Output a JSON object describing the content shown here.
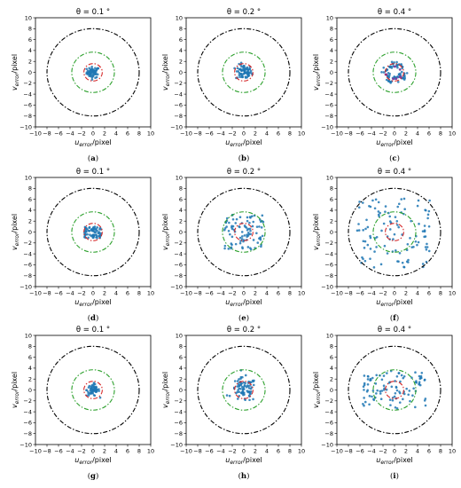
{
  "figure": {
    "rows": 3,
    "cols": 3
  },
  "chart_data": [
    {
      "panel": "(a)",
      "type": "scatter",
      "title": "θ = 0.1 °",
      "xlabel": "u_error/pixel",
      "ylabel": "v_error/pixel",
      "xlim": [
        -10,
        10
      ],
      "ylim": [
        -10,
        10
      ],
      "ticks": [
        -10,
        -8,
        -6,
        -4,
        -2,
        0,
        2,
        4,
        6,
        8,
        10
      ],
      "circles": [
        {
          "radius": 1.6,
          "color": "#d62728",
          "style": "dash-dot"
        },
        {
          "radius": 3.7,
          "color": "#2ca02c",
          "style": "dash-dot"
        },
        {
          "radius": 8.0,
          "color": "#000000",
          "style": "dash-dot"
        }
      ],
      "points": {
        "count": 60,
        "spread_x": 0.55,
        "spread_y": 0.5,
        "shape": "gauss",
        "color": "#1f77b4"
      }
    },
    {
      "panel": "(b)",
      "type": "scatter",
      "title": "θ = 0.2 °",
      "xlabel": "u_error/pixel",
      "ylabel": "v_error/pixel",
      "xlim": [
        -10,
        10
      ],
      "ylim": [
        -10,
        10
      ],
      "ticks": [
        -10,
        -8,
        -6,
        -4,
        -2,
        0,
        2,
        4,
        6,
        8,
        10
      ],
      "circles": [
        {
          "radius": 1.6,
          "color": "#d62728",
          "style": "dash-dot"
        },
        {
          "radius": 3.7,
          "color": "#2ca02c",
          "style": "dash-dot"
        },
        {
          "radius": 8.0,
          "color": "#000000",
          "style": "dash-dot"
        }
      ],
      "points": {
        "count": 70,
        "spread_x": 0.7,
        "spread_y": 0.7,
        "shape": "gauss",
        "color": "#1f77b4"
      }
    },
    {
      "panel": "(c)",
      "type": "scatter",
      "title": "θ = 0.4 °",
      "xlabel": "u_error/pixel",
      "ylabel": "v_error/pixel",
      "xlim": [
        -10,
        10
      ],
      "ylim": [
        -10,
        10
      ],
      "ticks": [
        -10,
        -8,
        -6,
        -4,
        -2,
        0,
        2,
        4,
        6,
        8,
        10
      ],
      "circles": [
        {
          "radius": 1.6,
          "color": "#d62728",
          "style": "dash-dot"
        },
        {
          "radius": 3.7,
          "color": "#2ca02c",
          "style": "dash-dot"
        },
        {
          "radius": 8.0,
          "color": "#000000",
          "style": "dash-dot"
        }
      ],
      "points": {
        "count": 70,
        "spread_x": 1.4,
        "spread_y": 1.3,
        "shape": "ring",
        "color": "#1f77b4",
        "purple_count": 8
      }
    },
    {
      "panel": "(d)",
      "type": "scatter",
      "title": "θ = 0.1 °",
      "xlabel": "u_error/pixel",
      "ylabel": "v_error/pixel",
      "xlim": [
        -10,
        10
      ],
      "ylim": [
        -10,
        10
      ],
      "ticks": [
        -10,
        -8,
        -6,
        -4,
        -2,
        0,
        2,
        4,
        6,
        8,
        10
      ],
      "circles": [
        {
          "radius": 1.6,
          "color": "#d62728",
          "style": "dash-dot"
        },
        {
          "radius": 3.7,
          "color": "#2ca02c",
          "style": "dash-dot"
        },
        {
          "radius": 8.0,
          "color": "#000000",
          "style": "dash-dot"
        }
      ],
      "points": {
        "count": 70,
        "spread_x": 1.5,
        "spread_y": 1.1,
        "shape": "uniform",
        "color": "#1f77b4"
      }
    },
    {
      "panel": "(e)",
      "type": "scatter",
      "title": "θ = 0.2 °",
      "xlabel": "u_error/pixel",
      "ylabel": "v_error/pixel",
      "xlim": [
        -10,
        10
      ],
      "ylim": [
        -10,
        10
      ],
      "ticks": [
        -10,
        -8,
        -6,
        -4,
        -2,
        0,
        2,
        4,
        6,
        8,
        10
      ],
      "circles": [
        {
          "radius": 1.6,
          "color": "#d62728",
          "style": "dash-dot"
        },
        {
          "radius": 3.7,
          "color": "#2ca02c",
          "style": "dash-dot"
        },
        {
          "radius": 8.0,
          "color": "#000000",
          "style": "dash-dot"
        }
      ],
      "points": {
        "count": 90,
        "spread_x": 3.4,
        "spread_y": 3.3,
        "shape": "uniform",
        "color": "#1f77b4"
      }
    },
    {
      "panel": "(f)",
      "type": "scatter",
      "title": "θ = 0.4 °",
      "xlabel": "u_error/pixel",
      "ylabel": "v_error/pixel",
      "xlim": [
        -10,
        10
      ],
      "ylim": [
        -10,
        10
      ],
      "ticks": [
        -10,
        -8,
        -6,
        -4,
        -2,
        0,
        2,
        4,
        6,
        8,
        10
      ],
      "circles": [
        {
          "radius": 1.6,
          "color": "#d62728",
          "style": "dash-dot"
        },
        {
          "radius": 3.7,
          "color": "#2ca02c",
          "style": "dash-dot"
        },
        {
          "radius": 8.0,
          "color": "#000000",
          "style": "dash-dot"
        }
      ],
      "points": {
        "count": 110,
        "spread_x": 6.5,
        "spread_y": 6.5,
        "shape": "uniform",
        "color": "#1f77b4"
      }
    },
    {
      "panel": "(g)",
      "type": "scatter",
      "title": "θ = 0.1 °",
      "xlabel": "u_error/pixel",
      "ylabel": "v_error/pixel",
      "xlim": [
        -10,
        10
      ],
      "ylim": [
        -10,
        10
      ],
      "ticks": [
        -10,
        -8,
        -6,
        -4,
        -2,
        0,
        2,
        4,
        6,
        8,
        10
      ],
      "circles": [
        {
          "radius": 1.6,
          "color": "#d62728",
          "style": "dash-dot"
        },
        {
          "radius": 3.7,
          "color": "#2ca02c",
          "style": "dash-dot"
        },
        {
          "radius": 8.0,
          "color": "#000000",
          "style": "dash-dot"
        }
      ],
      "points": {
        "count": 60,
        "spread_x": 0.55,
        "spread_y": 0.55,
        "shape": "gauss",
        "color": "#1f77b4"
      }
    },
    {
      "panel": "(h)",
      "type": "scatter",
      "title": "θ = 0.2 °",
      "xlabel": "u_error/pixel",
      "ylabel": "v_error/pixel",
      "xlim": [
        -10,
        10
      ],
      "ylim": [
        -10,
        10
      ],
      "ticks": [
        -10,
        -8,
        -6,
        -4,
        -2,
        0,
        2,
        4,
        6,
        8,
        10
      ],
      "circles": [
        {
          "radius": 1.6,
          "color": "#d62728",
          "style": "dash-dot"
        },
        {
          "radius": 3.7,
          "color": "#2ca02c",
          "style": "dash-dot"
        },
        {
          "radius": 8.0,
          "color": "#000000",
          "style": "dash-dot"
        }
      ],
      "points": {
        "count": 80,
        "spread_x": 1.1,
        "spread_y": 1.1,
        "shape": "gauss",
        "color": "#1f77b4"
      }
    },
    {
      "panel": "(i)",
      "type": "scatter",
      "title": "θ = 0.4 °",
      "xlabel": "u_error/pixel",
      "ylabel": "v_error/pixel",
      "xlim": [
        -10,
        10
      ],
      "ylim": [
        -10,
        10
      ],
      "ticks": [
        -10,
        -8,
        -6,
        -4,
        -2,
        0,
        2,
        4,
        6,
        8,
        10
      ],
      "circles": [
        {
          "radius": 1.6,
          "color": "#d62728",
          "style": "dash-dot"
        },
        {
          "radius": 3.7,
          "color": "#2ca02c",
          "style": "dash-dot"
        },
        {
          "radius": 8.0,
          "color": "#000000",
          "style": "dash-dot"
        }
      ],
      "points": {
        "count": 100,
        "spread_x": 5.5,
        "spread_y": 3.5,
        "shape": "uniform",
        "color": "#1f77b4"
      }
    }
  ]
}
